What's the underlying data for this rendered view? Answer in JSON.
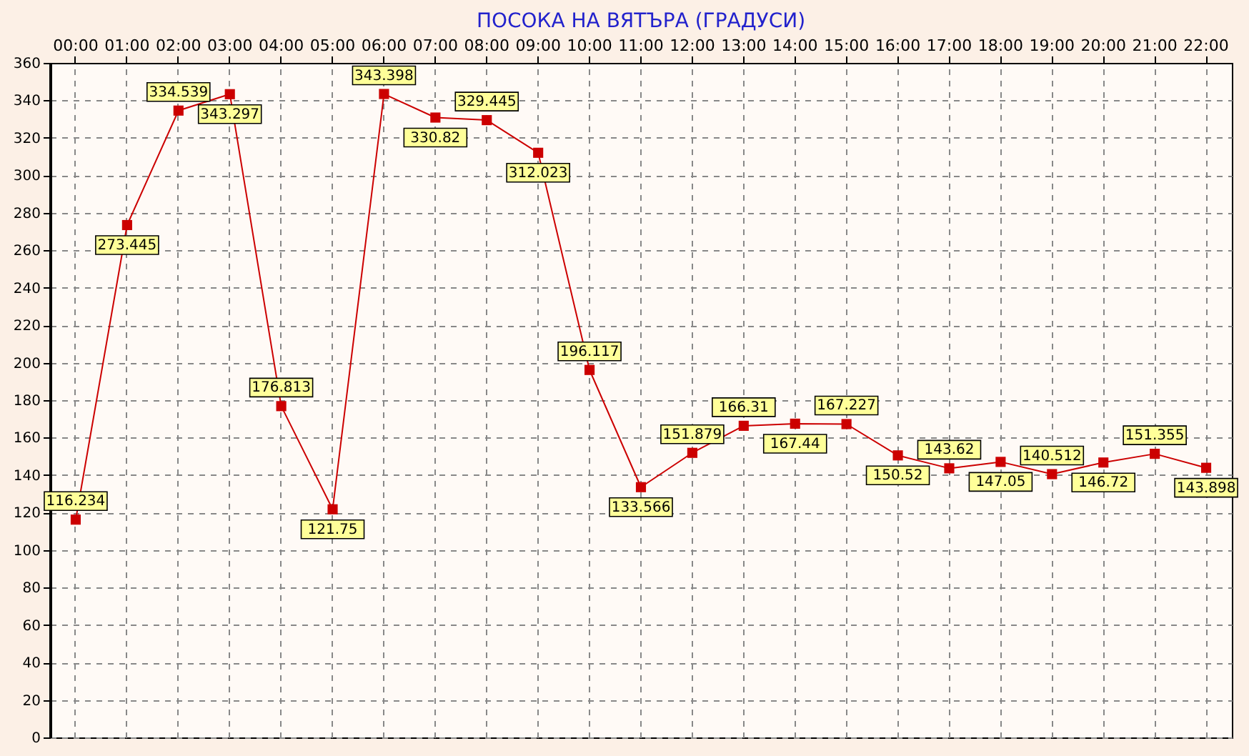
{
  "chart_data": {
    "type": "line",
    "title": "ПОСОКА НА ВЯТЪРА    (ГРАДУСИ)",
    "categories": [
      "00:00",
      "01:00",
      "02:00",
      "03:00",
      "04:00",
      "05:00",
      "06:00",
      "07:00",
      "08:00",
      "09:00",
      "10:00",
      "11:00",
      "12:00",
      "13:00",
      "14:00",
      "15:00",
      "16:00",
      "17:00",
      "18:00",
      "19:00",
      "20:00",
      "21:00",
      "22:00"
    ],
    "series": [
      {
        "color": "#cc0000",
        "values": [
          116.234,
          273.445,
          334.539,
          343.297,
          176.813,
          121.75,
          343.398,
          330.82,
          329.445,
          312.023,
          196.117,
          133.566,
          151.879,
          166.31,
          167.44,
          167.227,
          150.52,
          143.62,
          147.05,
          140.512,
          146.72,
          151.355,
          143.898
        ]
      }
    ],
    "ylim": [
      0,
      360
    ],
    "yticks": [
      0,
      20,
      40,
      60,
      80,
      100,
      120,
      140,
      160,
      180,
      200,
      220,
      240,
      260,
      280,
      300,
      320,
      340,
      360
    ],
    "grid": true,
    "marker": "square",
    "line_style": "solid",
    "data_labels": true
  }
}
